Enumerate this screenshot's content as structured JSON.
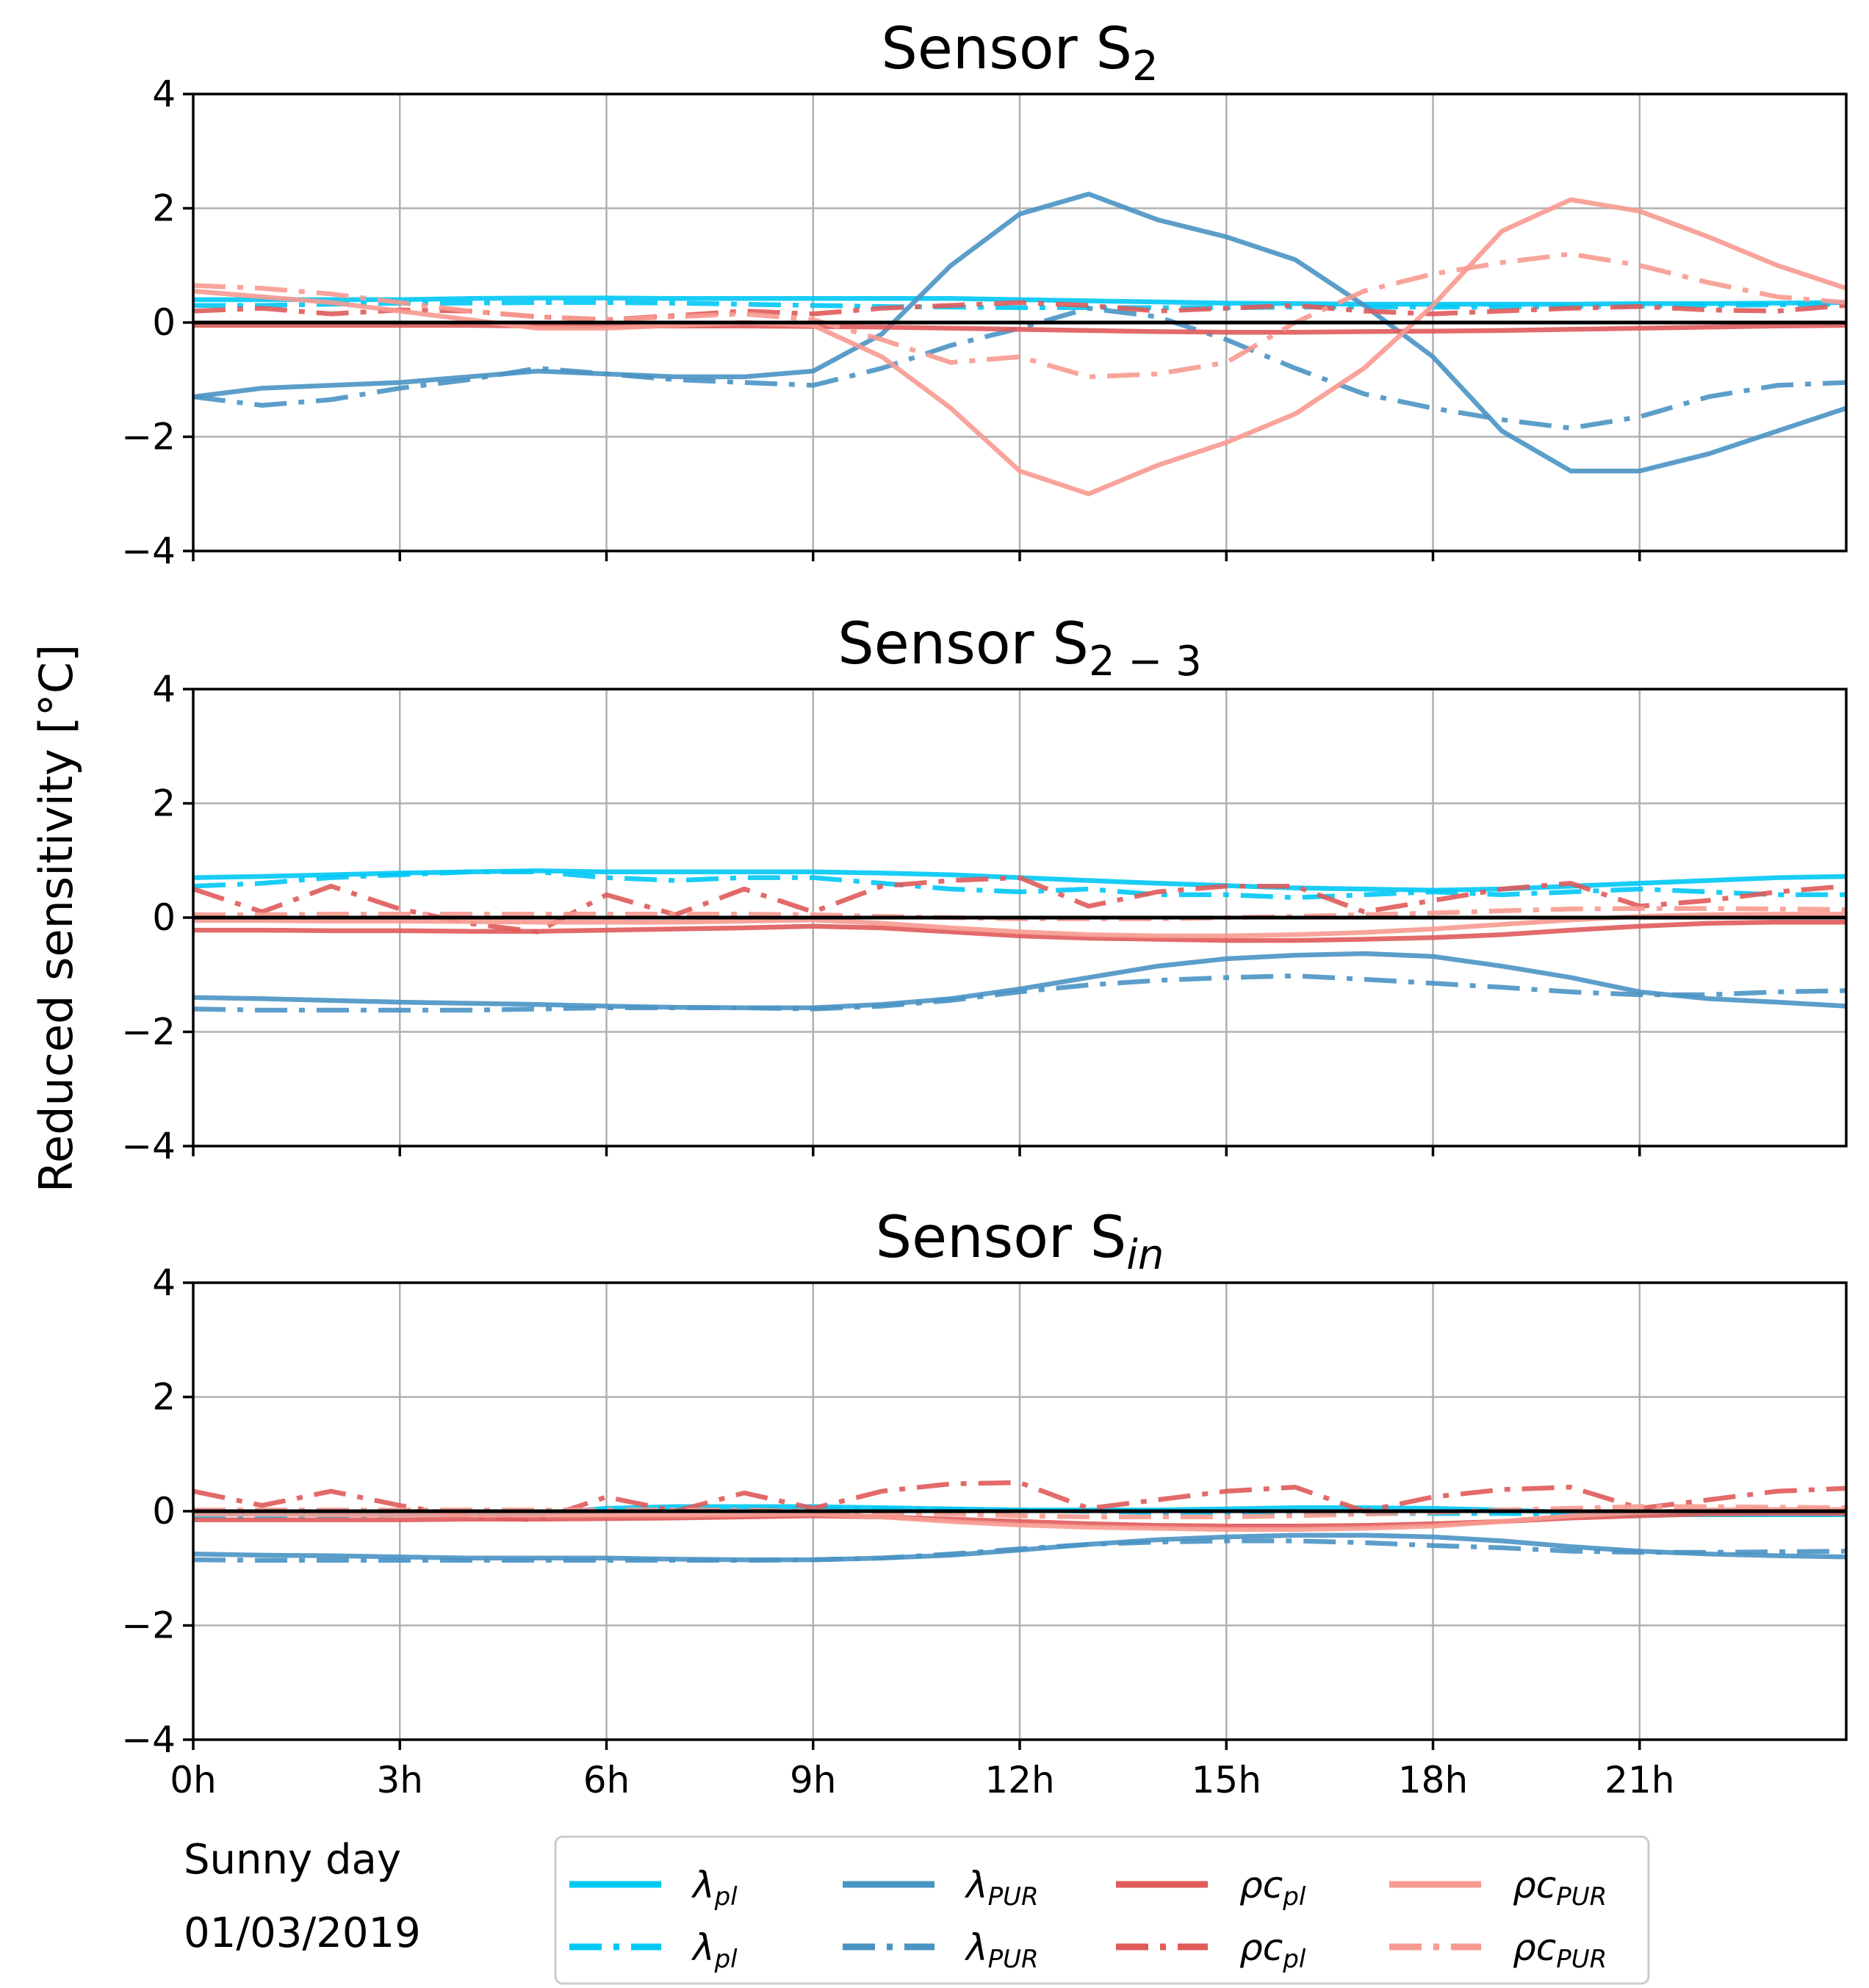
{
  "figure": {
    "ylabel": "Reduced sensitivity [°C]",
    "note_line1": "Sunny day",
    "note_line2": "01/03/2019"
  },
  "colors": {
    "lambda_pl": "#00c8f5",
    "lambda_pur": "#4a94c4",
    "rhoc_pl": "#e05a5a",
    "rhoc_pur": "#f79a90"
  },
  "legend": [
    {
      "key": "lambda_pl_solid",
      "sym": "λ",
      "sub": "pl",
      "style": "solid",
      "color_key": "lambda_pl"
    },
    {
      "key": "lambda_pur_solid",
      "sym": "λ",
      "sub": "PUR",
      "style": "solid",
      "color_key": "lambda_pur"
    },
    {
      "key": "rhoc_pl_solid",
      "sym": "ρc",
      "sub": "pl",
      "style": "solid",
      "color_key": "rhoc_pl"
    },
    {
      "key": "rhoc_pur_solid",
      "sym": "ρc",
      "sub": "PUR",
      "style": "solid",
      "color_key": "rhoc_pur"
    },
    {
      "key": "lambda_pl_dashdot",
      "sym": "λ",
      "sub": "pl",
      "style": "dashdot",
      "color_key": "lambda_pl"
    },
    {
      "key": "lambda_pur_dashdot",
      "sym": "λ",
      "sub": "PUR",
      "style": "dashdot",
      "color_key": "lambda_pur"
    },
    {
      "key": "rhoc_pl_dashdot",
      "sym": "ρc",
      "sub": "pl",
      "style": "dashdot",
      "color_key": "rhoc_pl"
    },
    {
      "key": "rhoc_pur_dashdot",
      "sym": "ρc",
      "sub": "PUR",
      "style": "dashdot",
      "color_key": "rhoc_pur"
    }
  ],
  "chart_data": [
    {
      "type": "line",
      "title_main": "Sensor S",
      "title_sub": "2",
      "xlabel": "",
      "ylabel": "Reduced sensitivity [°C]",
      "x_tick_values": [
        0,
        3,
        6,
        9,
        12,
        15,
        18,
        21
      ],
      "x_tick_labels": [],
      "xlim": [
        0,
        24
      ],
      "y_ticks": [
        4,
        2,
        0,
        -2,
        -4
      ],
      "y_tick_labels": [
        "4",
        "2",
        "0",
        "−2",
        "−4"
      ],
      "ylim": [
        -4,
        4
      ],
      "grid": true,
      "x": [
        0,
        1,
        2,
        3,
        4,
        5,
        6,
        7,
        8,
        9,
        10,
        11,
        12,
        13,
        14,
        15,
        16,
        17,
        18,
        19,
        20,
        21,
        22,
        23,
        24
      ],
      "series": [
        {
          "name": "λ pl",
          "color_key": "lambda_pl",
          "style": "solid",
          "values": [
            0.4,
            0.4,
            0.4,
            0.4,
            0.42,
            0.43,
            0.43,
            0.42,
            0.42,
            0.42,
            0.42,
            0.42,
            0.4,
            0.38,
            0.36,
            0.34,
            0.33,
            0.32,
            0.32,
            0.32,
            0.32,
            0.33,
            0.33,
            0.34,
            0.35
          ]
        },
        {
          "name": "λ pl",
          "color_key": "lambda_pl",
          "style": "dashdot",
          "values": [
            0.3,
            0.3,
            0.32,
            0.34,
            0.34,
            0.35,
            0.35,
            0.34,
            0.32,
            0.3,
            0.28,
            0.27,
            0.26,
            0.26,
            0.26,
            0.26,
            0.27,
            0.27,
            0.27,
            0.27,
            0.28,
            0.29,
            0.3,
            0.31,
            0.32
          ]
        },
        {
          "name": "λ PUR",
          "color_key": "lambda_pur",
          "style": "solid",
          "values": [
            -1.3,
            -1.15,
            -1.1,
            -1.05,
            -0.95,
            -0.85,
            -0.9,
            -0.95,
            -0.95,
            -0.85,
            -0.2,
            1.0,
            1.9,
            2.25,
            1.8,
            1.5,
            1.1,
            0.3,
            -0.6,
            -1.9,
            -2.6,
            -2.6,
            -2.3,
            -1.9,
            -1.5
          ]
        },
        {
          "name": "λ PUR",
          "color_key": "lambda_pur",
          "style": "dashdot",
          "values": [
            -1.3,
            -1.45,
            -1.35,
            -1.15,
            -1.0,
            -0.8,
            -0.9,
            -1.0,
            -1.05,
            -1.1,
            -0.8,
            -0.4,
            -0.1,
            0.25,
            0.1,
            -0.3,
            -0.8,
            -1.25,
            -1.5,
            -1.7,
            -1.85,
            -1.65,
            -1.3,
            -1.1,
            -1.05
          ]
        },
        {
          "name": "ρc pl",
          "color_key": "rhoc_pl",
          "style": "solid",
          "values": [
            -0.05,
            -0.05,
            -0.05,
            -0.05,
            -0.05,
            -0.06,
            -0.06,
            -0.06,
            -0.06,
            -0.07,
            -0.08,
            -0.1,
            -0.12,
            -0.14,
            -0.16,
            -0.17,
            -0.17,
            -0.16,
            -0.15,
            -0.14,
            -0.12,
            -0.1,
            -0.08,
            -0.06,
            -0.05
          ]
        },
        {
          "name": "ρc pl",
          "color_key": "rhoc_pl",
          "style": "dashdot",
          "values": [
            0.2,
            0.25,
            0.15,
            0.22,
            0.2,
            0.1,
            0.05,
            0.12,
            0.2,
            0.15,
            0.25,
            0.3,
            0.35,
            0.3,
            0.2,
            0.25,
            0.3,
            0.2,
            0.15,
            0.2,
            0.25,
            0.28,
            0.22,
            0.2,
            0.3
          ]
        },
        {
          "name": "ρc PUR",
          "color_key": "rhoc_pur",
          "style": "solid",
          "values": [
            0.55,
            0.45,
            0.35,
            0.2,
            0.05,
            -0.1,
            -0.1,
            -0.05,
            0.0,
            -0.05,
            -0.6,
            -1.5,
            -2.6,
            -3.0,
            -2.5,
            -2.1,
            -1.6,
            -0.8,
            0.3,
            1.6,
            2.15,
            1.95,
            1.5,
            1.0,
            0.6
          ]
        },
        {
          "name": "ρc PUR",
          "color_key": "rhoc_pur",
          "style": "dashdot",
          "values": [
            0.65,
            0.6,
            0.5,
            0.35,
            0.2,
            0.1,
            0.05,
            0.1,
            0.15,
            0.05,
            -0.3,
            -0.7,
            -0.6,
            -0.95,
            -0.9,
            -0.7,
            0.0,
            0.55,
            0.85,
            1.05,
            1.2,
            1.0,
            0.7,
            0.45,
            0.35
          ]
        }
      ]
    },
    {
      "type": "line",
      "title_main": "Sensor S",
      "title_sub": "2 − 3",
      "xlabel": "",
      "ylabel": "Reduced sensitivity [°C]",
      "x_tick_values": [
        0,
        3,
        6,
        9,
        12,
        15,
        18,
        21
      ],
      "x_tick_labels": [],
      "xlim": [
        0,
        24
      ],
      "y_ticks": [
        4,
        2,
        0,
        -2,
        -4
      ],
      "y_tick_labels": [
        "4",
        "2",
        "0",
        "−2",
        "−4"
      ],
      "ylim": [
        -4,
        4
      ],
      "grid": true,
      "x": [
        0,
        1,
        2,
        3,
        4,
        5,
        6,
        7,
        8,
        9,
        10,
        11,
        12,
        13,
        14,
        15,
        16,
        17,
        18,
        19,
        20,
        21,
        22,
        23,
        24
      ],
      "series": [
        {
          "name": "λ pl",
          "color_key": "lambda_pl",
          "style": "solid",
          "values": [
            0.7,
            0.72,
            0.75,
            0.78,
            0.8,
            0.82,
            0.8,
            0.8,
            0.8,
            0.8,
            0.78,
            0.75,
            0.7,
            0.65,
            0.6,
            0.56,
            0.52,
            0.5,
            0.48,
            0.5,
            0.55,
            0.6,
            0.65,
            0.7,
            0.72
          ]
        },
        {
          "name": "λ pl",
          "color_key": "lambda_pl",
          "style": "dashdot",
          "values": [
            0.55,
            0.6,
            0.7,
            0.75,
            0.8,
            0.8,
            0.7,
            0.65,
            0.7,
            0.7,
            0.6,
            0.5,
            0.45,
            0.5,
            0.4,
            0.4,
            0.35,
            0.4,
            0.45,
            0.4,
            0.45,
            0.5,
            0.45,
            0.4,
            0.4
          ]
        },
        {
          "name": "λ PUR",
          "color_key": "lambda_pur",
          "style": "solid",
          "values": [
            -1.4,
            -1.42,
            -1.45,
            -1.48,
            -1.5,
            -1.52,
            -1.55,
            -1.57,
            -1.58,
            -1.58,
            -1.52,
            -1.42,
            -1.25,
            -1.05,
            -0.85,
            -0.72,
            -0.66,
            -0.63,
            -0.68,
            -0.85,
            -1.05,
            -1.3,
            -1.42,
            -1.48,
            -1.55
          ]
        },
        {
          "name": "λ PUR",
          "color_key": "lambda_pur",
          "style": "dashdot",
          "values": [
            -1.6,
            -1.62,
            -1.62,
            -1.62,
            -1.62,
            -1.6,
            -1.58,
            -1.58,
            -1.58,
            -1.6,
            -1.55,
            -1.45,
            -1.3,
            -1.18,
            -1.1,
            -1.05,
            -1.02,
            -1.08,
            -1.15,
            -1.22,
            -1.3,
            -1.35,
            -1.35,
            -1.3,
            -1.28
          ]
        },
        {
          "name": "ρc pl",
          "color_key": "rhoc_pl",
          "style": "solid",
          "values": [
            -0.22,
            -0.22,
            -0.23,
            -0.23,
            -0.24,
            -0.24,
            -0.22,
            -0.2,
            -0.18,
            -0.15,
            -0.18,
            -0.25,
            -0.32,
            -0.36,
            -0.38,
            -0.4,
            -0.4,
            -0.38,
            -0.35,
            -0.3,
            -0.22,
            -0.15,
            -0.1,
            -0.08,
            -0.08
          ]
        },
        {
          "name": "ρc pl",
          "color_key": "rhoc_pl",
          "style": "dashdot",
          "values": [
            0.5,
            0.1,
            0.55,
            0.15,
            -0.1,
            -0.25,
            0.4,
            0.05,
            0.5,
            0.1,
            0.55,
            0.65,
            0.7,
            0.2,
            0.45,
            0.55,
            0.55,
            0.1,
            0.3,
            0.5,
            0.6,
            0.2,
            0.3,
            0.45,
            0.55
          ]
        },
        {
          "name": "ρc PUR",
          "color_key": "rhoc_pur",
          "style": "solid",
          "values": [
            -0.05,
            -0.05,
            -0.06,
            -0.06,
            -0.07,
            -0.08,
            -0.08,
            -0.08,
            -0.06,
            -0.04,
            -0.1,
            -0.18,
            -0.25,
            -0.3,
            -0.32,
            -0.32,
            -0.3,
            -0.26,
            -0.2,
            -0.12,
            -0.04,
            0.02,
            0.05,
            0.06,
            0.06
          ]
        },
        {
          "name": "ρc PUR",
          "color_key": "rhoc_pur",
          "style": "dashdot",
          "values": [
            0.05,
            0.05,
            0.06,
            0.06,
            0.06,
            0.06,
            0.06,
            0.06,
            0.06,
            0.05,
            0.02,
            0.0,
            -0.02,
            -0.02,
            -0.02,
            0.0,
            0.02,
            0.05,
            0.08,
            0.12,
            0.15,
            0.16,
            0.16,
            0.15,
            0.14
          ]
        }
      ]
    },
    {
      "type": "line",
      "title_main": "Sensor S",
      "title_sub": "in",
      "xlabel": "",
      "ylabel": "Reduced sensitivity [°C]",
      "x_tick_values": [
        0,
        3,
        6,
        9,
        12,
        15,
        18,
        21
      ],
      "x_tick_labels": [
        "0h",
        "3h",
        "6h",
        "9h",
        "12h",
        "15h",
        "18h",
        "21h"
      ],
      "xlim": [
        0,
        24
      ],
      "y_ticks": [
        4,
        2,
        0,
        -2,
        -4
      ],
      "y_tick_labels": [
        "4",
        "2",
        "0",
        "−2",
        "−4"
      ],
      "ylim": [
        -4,
        4
      ],
      "grid": true,
      "x": [
        0,
        1,
        2,
        3,
        4,
        5,
        6,
        7,
        8,
        9,
        10,
        11,
        12,
        13,
        14,
        15,
        16,
        17,
        18,
        19,
        20,
        21,
        22,
        23,
        24
      ],
      "series": [
        {
          "name": "λ pl",
          "color_key": "lambda_pl",
          "style": "solid",
          "values": [
            -0.05,
            -0.05,
            -0.05,
            -0.05,
            -0.05,
            -0.04,
            0.05,
            0.08,
            0.08,
            0.08,
            0.06,
            0.04,
            0.02,
            0.02,
            0.02,
            0.04,
            0.06,
            0.06,
            0.05,
            0.02,
            -0.02,
            -0.05,
            -0.06,
            -0.06,
            -0.06
          ]
        },
        {
          "name": "λ pl",
          "color_key": "lambda_pl",
          "style": "dashdot",
          "values": [
            -0.1,
            -0.1,
            -0.08,
            -0.06,
            -0.05,
            -0.04,
            0.0,
            0.02,
            0.03,
            0.04,
            0.04,
            0.03,
            0.02,
            0.0,
            -0.02,
            -0.02,
            -0.03,
            -0.04,
            -0.04,
            -0.04,
            -0.05,
            -0.06,
            -0.06,
            -0.06,
            -0.06
          ]
        },
        {
          "name": "λ PUR",
          "color_key": "lambda_pur",
          "style": "solid",
          "values": [
            -0.75,
            -0.77,
            -0.78,
            -0.8,
            -0.82,
            -0.82,
            -0.82,
            -0.84,
            -0.85,
            -0.85,
            -0.82,
            -0.77,
            -0.68,
            -0.58,
            -0.5,
            -0.45,
            -0.42,
            -0.42,
            -0.45,
            -0.52,
            -0.62,
            -0.7,
            -0.75,
            -0.78,
            -0.8
          ]
        },
        {
          "name": "λ PUR",
          "color_key": "lambda_pur",
          "style": "dashdot",
          "values": [
            -0.85,
            -0.86,
            -0.86,
            -0.86,
            -0.86,
            -0.86,
            -0.86,
            -0.86,
            -0.86,
            -0.85,
            -0.82,
            -0.75,
            -0.66,
            -0.58,
            -0.54,
            -0.52,
            -0.52,
            -0.55,
            -0.6,
            -0.64,
            -0.7,
            -0.72,
            -0.72,
            -0.71,
            -0.7
          ]
        },
        {
          "name": "ρc pl",
          "color_key": "rhoc_pl",
          "style": "solid",
          "values": [
            -0.15,
            -0.15,
            -0.15,
            -0.15,
            -0.14,
            -0.14,
            -0.13,
            -0.12,
            -0.1,
            -0.08,
            -0.1,
            -0.14,
            -0.18,
            -0.22,
            -0.25,
            -0.26,
            -0.26,
            -0.25,
            -0.22,
            -0.18,
            -0.12,
            -0.08,
            -0.05,
            -0.04,
            -0.04
          ]
        },
        {
          "name": "ρc pl",
          "color_key": "rhoc_pl",
          "style": "dashdot",
          "values": [
            0.35,
            0.1,
            0.35,
            0.1,
            -0.1,
            -0.15,
            0.25,
            0.0,
            0.32,
            0.05,
            0.35,
            0.48,
            0.5,
            0.05,
            0.2,
            0.35,
            0.42,
            0.0,
            0.25,
            0.38,
            0.42,
            0.05,
            0.2,
            0.35,
            0.4
          ]
        },
        {
          "name": "ρc PUR",
          "color_key": "rhoc_pur",
          "style": "solid",
          "values": [
            -0.05,
            -0.05,
            -0.06,
            -0.06,
            -0.07,
            -0.07,
            -0.07,
            -0.07,
            -0.06,
            -0.05,
            -0.1,
            -0.18,
            -0.24,
            -0.28,
            -0.3,
            -0.32,
            -0.32,
            -0.3,
            -0.26,
            -0.18,
            -0.08,
            -0.02,
            0.02,
            0.03,
            0.03
          ]
        },
        {
          "name": "ρc PUR",
          "color_key": "rhoc_pur",
          "style": "dashdot",
          "values": [
            0.02,
            0.02,
            0.02,
            0.02,
            0.02,
            0.02,
            0.02,
            0.02,
            0.02,
            0.0,
            -0.02,
            -0.05,
            -0.08,
            -0.1,
            -0.1,
            -0.1,
            -0.08,
            -0.05,
            -0.02,
            0.02,
            0.05,
            0.08,
            0.08,
            0.07,
            0.06
          ]
        }
      ]
    }
  ]
}
